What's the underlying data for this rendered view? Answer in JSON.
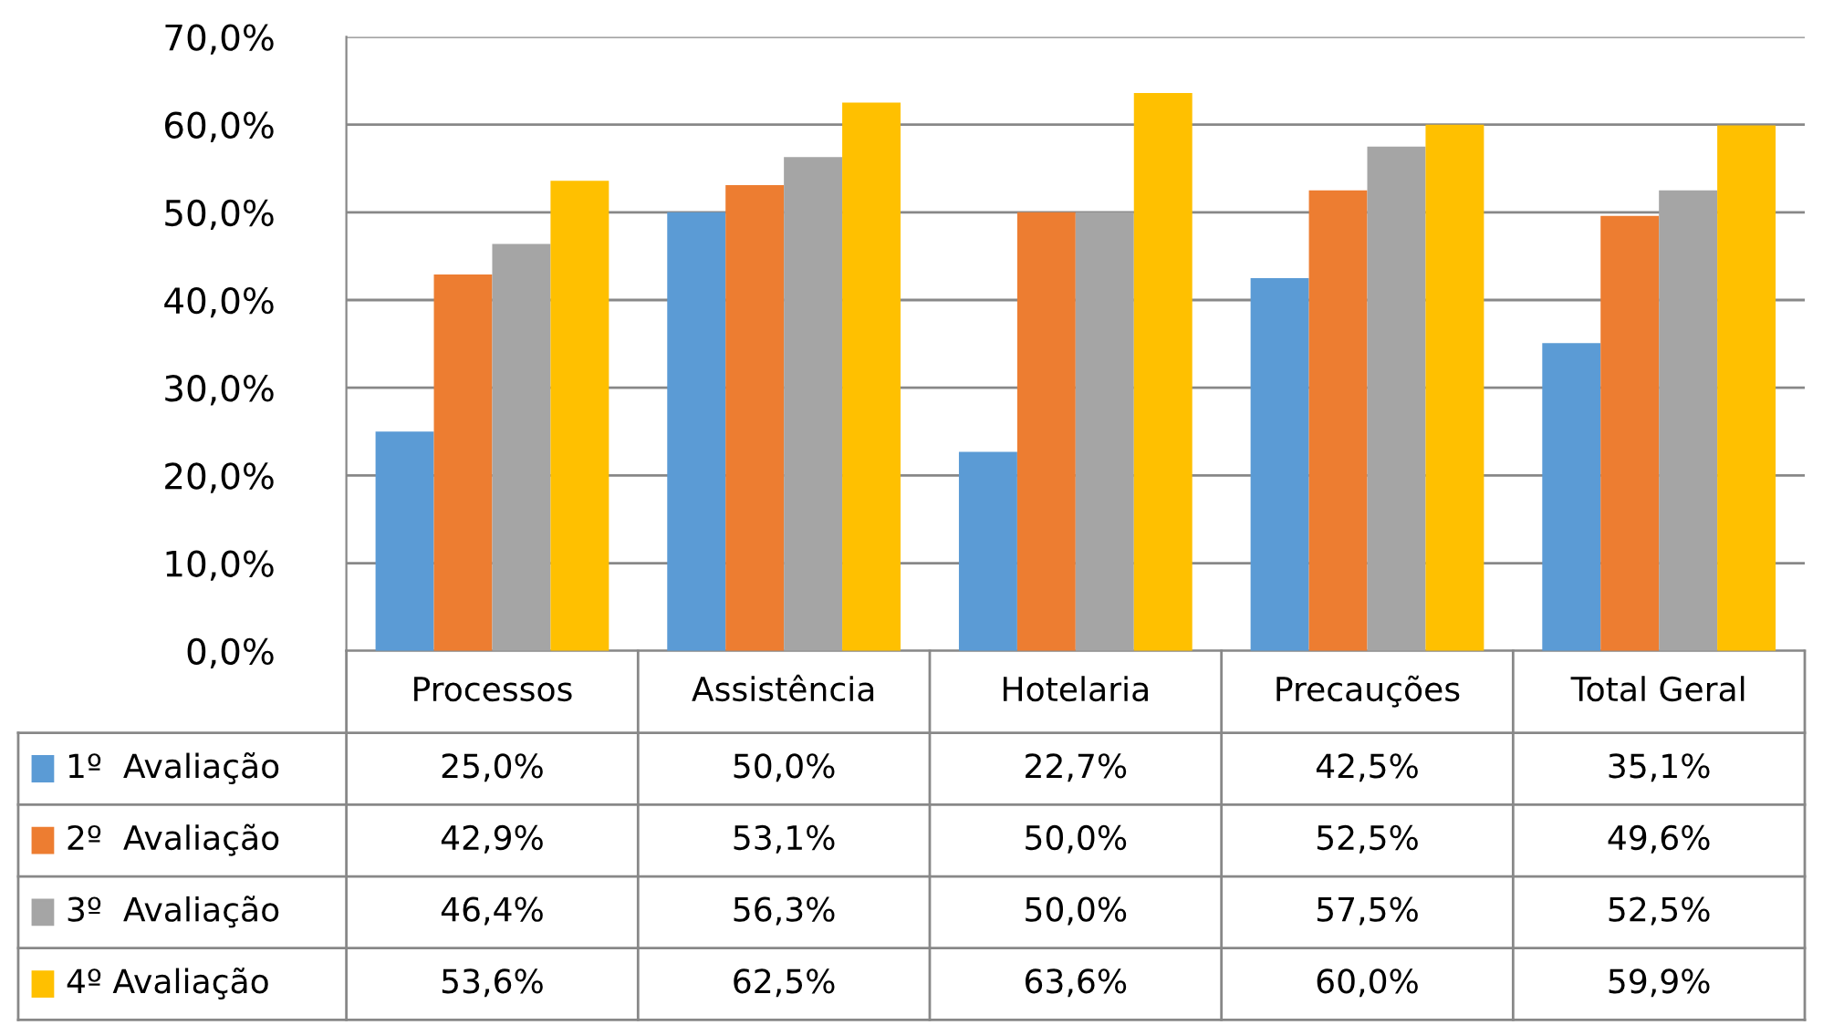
{
  "chart_data": {
    "type": "bar",
    "categories": [
      "Processos",
      "Assistência",
      "Hotelaria",
      "Precauções",
      "Total Geral"
    ],
    "series": [
      {
        "name": "1º  Avaliação",
        "color": "#5b9bd5",
        "values": [
          25.0,
          50.0,
          22.7,
          42.5,
          35.1
        ],
        "value_labels": [
          "25,0%",
          "50,0%",
          "22,7%",
          "42,5%",
          "35,1%"
        ]
      },
      {
        "name": "2º  Avaliação",
        "color": "#ed7d31",
        "values": [
          42.9,
          53.1,
          50.0,
          52.5,
          49.6
        ],
        "value_labels": [
          "42,9%",
          "53,1%",
          "50,0%",
          "52,5%",
          "49,6%"
        ]
      },
      {
        "name": "3º  Avaliação",
        "color": "#a5a5a5",
        "values": [
          46.4,
          56.3,
          50.0,
          57.5,
          52.5
        ],
        "value_labels": [
          "46,4%",
          "56,3%",
          "50,0%",
          "57,5%",
          "52,5%"
        ]
      },
      {
        "name": "4º Avaliação",
        "color": "#ffc000",
        "values": [
          53.6,
          62.5,
          63.6,
          60.0,
          59.9
        ],
        "value_labels": [
          "53,6%",
          "62,5%",
          "63,6%",
          "60,0%",
          "59,9%"
        ]
      }
    ],
    "ylim": [
      0,
      70
    ],
    "yticks": [
      {
        "value": 0,
        "label": "0,0%"
      },
      {
        "value": 10,
        "label": "10,0%"
      },
      {
        "value": 20,
        "label": "20,0%"
      },
      {
        "value": 30,
        "label": "30,0%"
      },
      {
        "value": 40,
        "label": "40,0%"
      },
      {
        "value": 50,
        "label": "50,0%"
      },
      {
        "value": 60,
        "label": "60,0%"
      },
      {
        "value": 70,
        "label": "70,0%"
      }
    ],
    "grid": "y",
    "legend": "bottom left"
  }
}
